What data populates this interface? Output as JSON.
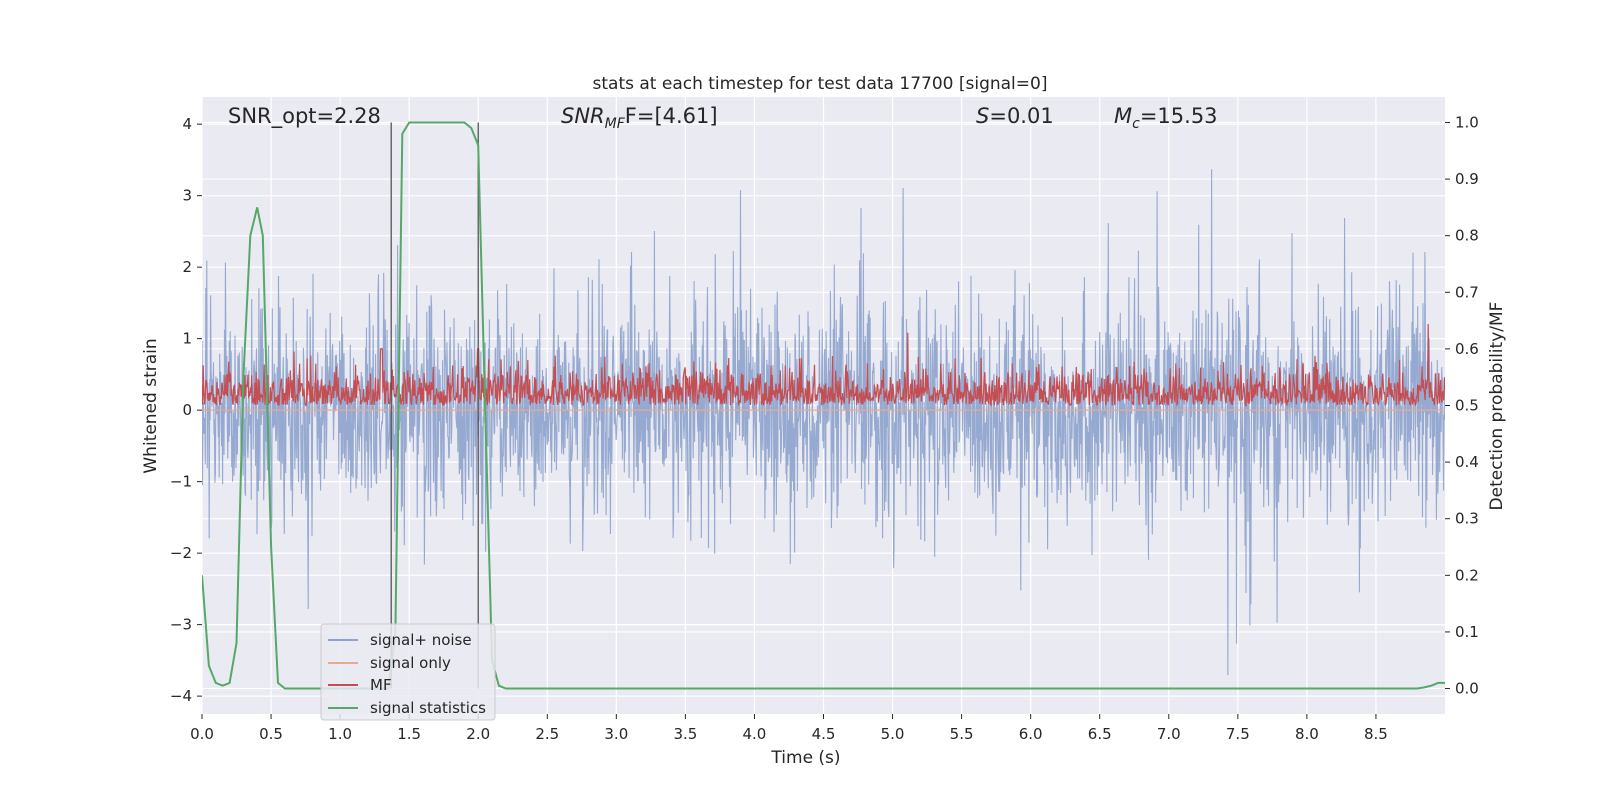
{
  "chart_data": {
    "type": "line",
    "title": "stats at each timestep for test data 17700 [signal=0]",
    "xlabel": "Time (s)",
    "ylabel_left": "Whitened strain",
    "ylabel_right": "Detection probability/MF",
    "xlim": [
      0.0,
      9.0
    ],
    "ylim_left": [
      -4.25,
      4.38
    ],
    "ylim_right": [
      -0.045,
      1.045
    ],
    "x_ticks": [
      "0.0",
      "0.5",
      "1.0",
      "1.5",
      "2.0",
      "2.5",
      "3.0",
      "3.5",
      "4.0",
      "4.5",
      "5.0",
      "5.5",
      "6.0",
      "6.5",
      "7.0",
      "7.5",
      "8.0",
      "8.5"
    ],
    "y_ticks_left": [
      "4",
      "3",
      "2",
      "1",
      "0",
      "−1",
      "−2",
      "−3",
      "−4"
    ],
    "y_ticks_right": [
      "1.0",
      "0.9",
      "0.8",
      "0.7",
      "0.6",
      "0.5",
      "0.4",
      "0.3",
      "0.2",
      "0.1",
      "0.0"
    ],
    "grid": true,
    "annotations": {
      "snr_opt": "SNR_opt=2.28",
      "snr_mf_main": "SNR",
      "snr_mf_sub": "MF",
      "snr_mf_rest": "F=[4.61]",
      "s_main": "S",
      "s_rest": "=0.01",
      "mc_main": "M",
      "mc_sub": "c",
      "mc_rest": "=15.53"
    },
    "legend": {
      "location": "lower left",
      "entries": [
        "signal+ noise",
        "signal only",
        "MF",
        "signal statistics"
      ]
    },
    "series": [
      {
        "name": "signal+ noise",
        "axis": "left",
        "color": "#8da2cc",
        "description_range": [
          -3.8,
          4.0
        ],
        "envelope_typical": [
          -1.5,
          1.7
        ]
      },
      {
        "name": "signal only",
        "axis": "left",
        "color": "#e8a98e",
        "values_constant": 0.0
      },
      {
        "name": "MF",
        "axis": "right",
        "color": "#c44e52",
        "typical_range": [
          0.5,
          0.55
        ],
        "peaks": [
          [
            1.3,
            0.6
          ],
          [
            2.0,
            0.6
          ]
        ]
      },
      {
        "name": "signal statistics",
        "axis": "right",
        "color": "#55a868",
        "x": [
          0.0,
          0.05,
          0.1,
          0.15,
          0.2,
          0.25,
          0.3,
          0.35,
          0.4,
          0.44,
          0.5,
          0.55,
          0.6,
          0.7,
          0.8,
          1.0,
          1.2,
          1.3,
          1.35,
          1.4,
          1.45,
          1.5,
          1.6,
          1.8,
          1.9,
          1.95,
          2.0,
          2.05,
          2.1,
          2.15,
          2.2,
          2.3,
          2.5,
          3.0,
          4.0,
          5.0,
          6.0,
          7.0,
          8.0,
          8.6,
          8.8,
          8.85,
          8.9,
          8.95,
          9.0
        ],
        "y": [
          0.2,
          0.04,
          0.01,
          0.005,
          0.01,
          0.08,
          0.55,
          0.8,
          0.85,
          0.8,
          0.25,
          0.01,
          0.0,
          0.0,
          0.0,
          0.0,
          0.0,
          0.0,
          0.0,
          0.1,
          0.98,
          1.0,
          1.0,
          1.0,
          1.0,
          0.99,
          0.96,
          0.5,
          0.05,
          0.005,
          0.0,
          0.0,
          0.0,
          0.0,
          0.0,
          0.0,
          0.0,
          0.0,
          0.0,
          0.0,
          0.0,
          0.002,
          0.005,
          0.01,
          0.01
        ]
      }
    ],
    "vertical_markers_x": [
      1.37,
      2.0
    ]
  }
}
